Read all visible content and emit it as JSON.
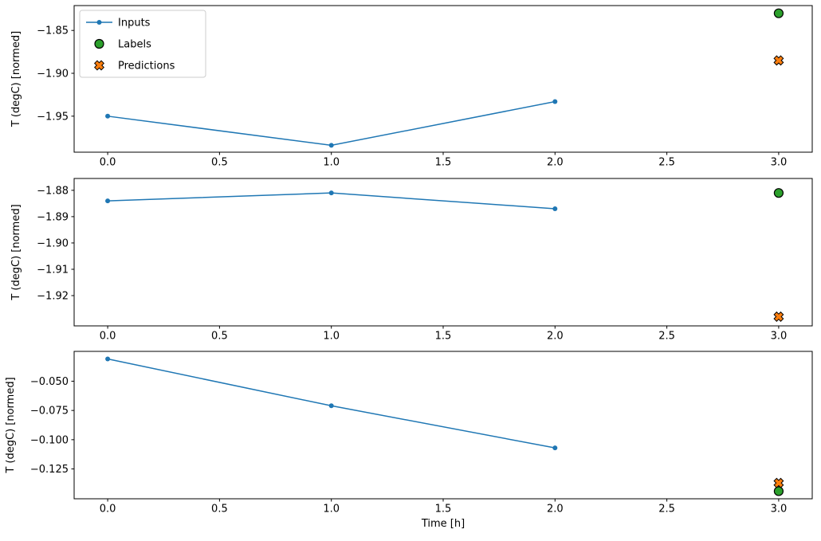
{
  "figure": {
    "xlabel": "Time [h]",
    "ylabel": "T (degC) [normed]",
    "colors": {
      "inputs": "#1f77b4",
      "labels": "#2ca02c",
      "predictions": "#ff7f0e",
      "marker_edge": "#000000",
      "legend_border": "#cccccc"
    },
    "legend": {
      "position": "upper left",
      "items": [
        {
          "label": "Inputs",
          "type": "line-dot",
          "color": "#1f77b4"
        },
        {
          "label": "Labels",
          "type": "circle",
          "color": "#2ca02c",
          "edge_color": "#000000"
        },
        {
          "label": "Predictions",
          "type": "x",
          "color": "#ff7f0e",
          "edge_color": "#000000"
        }
      ]
    },
    "x_ticks": [
      {
        "value": 0.0,
        "label": "0.0"
      },
      {
        "value": 0.5,
        "label": "0.5"
      },
      {
        "value": 1.0,
        "label": "1.0"
      },
      {
        "value": 1.5,
        "label": "1.5"
      },
      {
        "value": 2.0,
        "label": "2.0"
      },
      {
        "value": 2.5,
        "label": "2.5"
      },
      {
        "value": 3.0,
        "label": "3.0"
      }
    ]
  },
  "chart_data": [
    {
      "type": "line",
      "title": "",
      "ylabel": "T (degC) [normed]",
      "xlim": [
        -0.15,
        3.15
      ],
      "ylim": [
        -1.992,
        -1.821
      ],
      "yticks": [
        {
          "value": -1.85,
          "label": "−1.85"
        },
        {
          "value": -1.9,
          "label": "−1.90"
        },
        {
          "value": -1.95,
          "label": "−1.95"
        }
      ],
      "series": [
        {
          "name": "Inputs",
          "marker": "dot",
          "line": true,
          "color": "#1f77b4",
          "x": [
            0,
            1,
            2
          ],
          "y": [
            -1.95,
            -1.984,
            -1.933
          ]
        },
        {
          "name": "Labels",
          "marker": "circle",
          "line": false,
          "color": "#2ca02c",
          "edge_color": "#000000",
          "x": [
            3
          ],
          "y": [
            -1.83
          ]
        },
        {
          "name": "Predictions",
          "marker": "X",
          "line": false,
          "color": "#ff7f0e",
          "edge_color": "#000000",
          "x": [
            3
          ],
          "y": [
            -1.885
          ]
        }
      ]
    },
    {
      "type": "line",
      "title": "",
      "ylabel": "T (degC) [normed]",
      "xlim": [
        -0.15,
        3.15
      ],
      "ylim": [
        -1.9315,
        -1.8755
      ],
      "yticks": [
        {
          "value": -1.88,
          "label": "−1.88"
        },
        {
          "value": -1.89,
          "label": "−1.89"
        },
        {
          "value": -1.9,
          "label": "−1.90"
        },
        {
          "value": -1.91,
          "label": "−1.91"
        },
        {
          "value": -1.92,
          "label": "−1.92"
        }
      ],
      "series": [
        {
          "name": "Inputs",
          "marker": "dot",
          "line": true,
          "color": "#1f77b4",
          "x": [
            0,
            1,
            2
          ],
          "y": [
            -1.884,
            -1.881,
            -1.887
          ]
        },
        {
          "name": "Labels",
          "marker": "circle",
          "line": false,
          "color": "#2ca02c",
          "edge_color": "#000000",
          "x": [
            3
          ],
          "y": [
            -1.881
          ]
        },
        {
          "name": "Predictions",
          "marker": "X",
          "line": false,
          "color": "#ff7f0e",
          "edge_color": "#000000",
          "x": [
            3
          ],
          "y": [
            -1.928
          ]
        }
      ]
    },
    {
      "type": "line",
      "title": "",
      "ylabel": "T (degC) [normed]",
      "xlim": [
        -0.15,
        3.15
      ],
      "ylim": [
        -0.1505,
        -0.0245
      ],
      "yticks": [
        {
          "value": -0.05,
          "label": "−0.050"
        },
        {
          "value": -0.075,
          "label": "−0.075"
        },
        {
          "value": -0.1,
          "label": "−0.100"
        },
        {
          "value": -0.125,
          "label": "−0.125"
        }
      ],
      "series": [
        {
          "name": "Inputs",
          "marker": "dot",
          "line": true,
          "color": "#1f77b4",
          "x": [
            0,
            1,
            2
          ],
          "y": [
            -0.031,
            -0.071,
            -0.107
          ]
        },
        {
          "name": "Labels",
          "marker": "circle",
          "line": false,
          "color": "#2ca02c",
          "edge_color": "#000000",
          "x": [
            3
          ],
          "y": [
            -0.144
          ]
        },
        {
          "name": "Predictions",
          "marker": "X",
          "line": false,
          "color": "#ff7f0e",
          "edge_color": "#000000",
          "x": [
            3
          ],
          "y": [
            -0.137
          ]
        }
      ]
    }
  ]
}
